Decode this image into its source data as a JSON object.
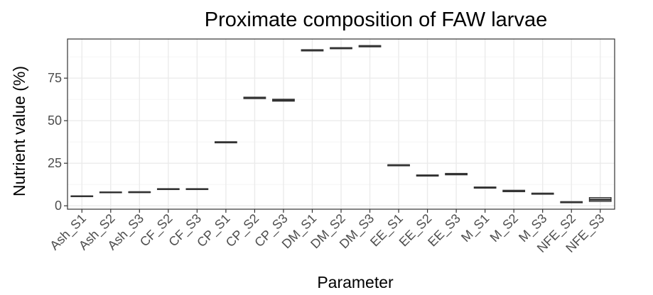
{
  "chart_data": {
    "type": "boxplot",
    "title": "Proximate composition of FAW larvae",
    "xlabel": "Parameter",
    "ylabel": "Nutrient value (%)",
    "ylim": [
      -2,
      98
    ],
    "yticks": [
      0,
      25,
      50,
      75
    ],
    "grid": true,
    "legend": "none",
    "categories": [
      "Ash_S1",
      "Ash_S2",
      "Ash_S3",
      "CF_S2",
      "CF_S3",
      "CP_S1",
      "CP_S2",
      "CP_S3",
      "DM_S1",
      "DM_S2",
      "DM_S3",
      "EE_S1",
      "EE_S2",
      "EE_S3",
      "M_S1",
      "M_S2",
      "M_S3",
      "NFE_S2",
      "NFE_S3"
    ],
    "boxes": [
      {
        "q1": 5.4,
        "median": 5.6,
        "q3": 5.8
      },
      {
        "q1": 7.7,
        "median": 7.9,
        "q3": 8.1
      },
      {
        "q1": 7.8,
        "median": 8.0,
        "q3": 8.2
      },
      {
        "q1": 9.6,
        "median": 9.8,
        "q3": 10.0
      },
      {
        "q1": 9.6,
        "median": 9.8,
        "q3": 10.0
      },
      {
        "q1": 37.0,
        "median": 37.3,
        "q3": 37.6
      },
      {
        "q1": 63.0,
        "median": 63.4,
        "q3": 63.8
      },
      {
        "q1": 61.5,
        "median": 62.0,
        "q3": 62.6
      },
      {
        "q1": 91.0,
        "median": 91.4,
        "q3": 91.7
      },
      {
        "q1": 92.3,
        "median": 92.6,
        "q3": 92.9
      },
      {
        "q1": 93.4,
        "median": 93.8,
        "q3": 94.1
      },
      {
        "q1": 23.5,
        "median": 23.8,
        "q3": 24.1
      },
      {
        "q1": 17.5,
        "median": 17.8,
        "q3": 18.1
      },
      {
        "q1": 18.2,
        "median": 18.6,
        "q3": 19.0
      },
      {
        "q1": 10.4,
        "median": 10.7,
        "q3": 11.0
      },
      {
        "q1": 8.3,
        "median": 8.7,
        "q3": 9.1
      },
      {
        "q1": 6.8,
        "median": 7.1,
        "q3": 7.4
      },
      {
        "q1": 1.8,
        "median": 2.1,
        "q3": 2.4
      },
      {
        "q1": 2.6,
        "median": 3.6,
        "q3": 4.8
      }
    ]
  }
}
